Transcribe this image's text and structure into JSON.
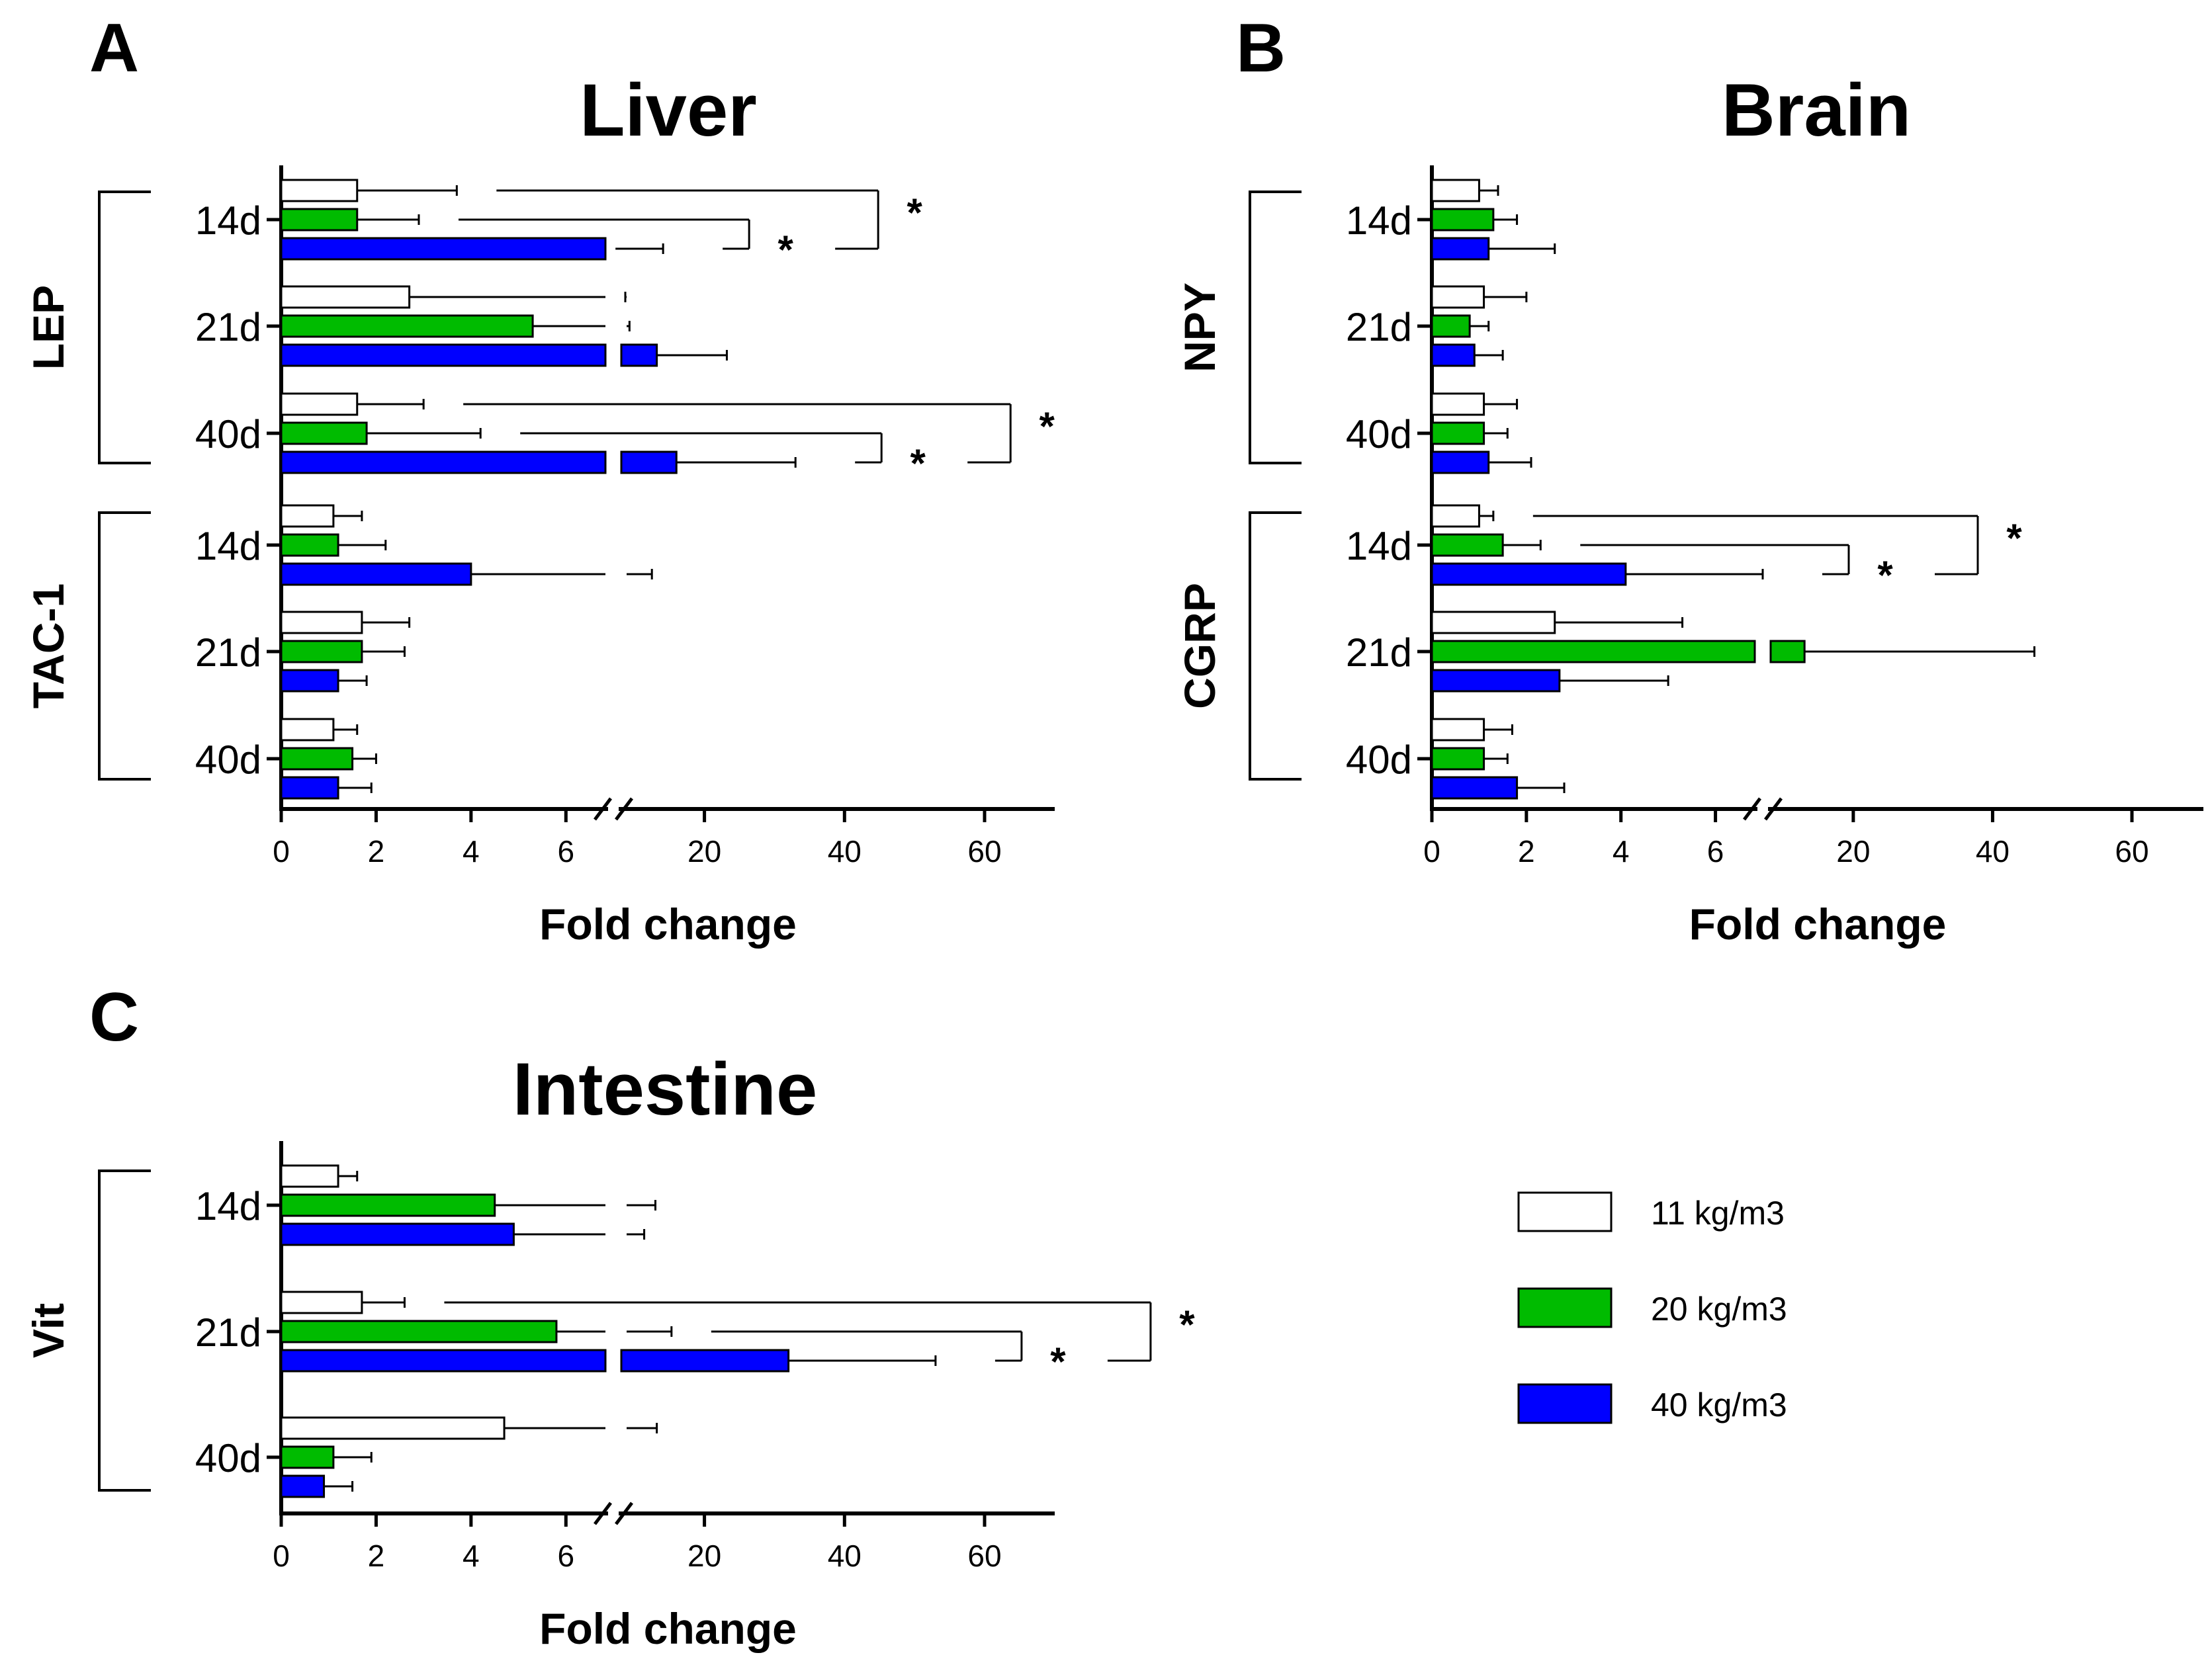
{
  "chart_data": [
    {
      "panel": "A",
      "title": "Liver",
      "type": "bar",
      "orientation": "horizontal",
      "xlabel": "Fold change",
      "x_ticks": [
        "0",
        "2",
        "4",
        "6",
        "20",
        "40",
        "60"
      ],
      "x_axis_break": {
        "lower_range": [
          0,
          7
        ],
        "upper_range": [
          7,
          70
        ]
      },
      "groups": [
        {
          "gene": "LEP",
          "rows": [
            {
              "label": "14d",
              "values": [
                1.6,
                1.6,
                7.3
              ],
              "errors": [
                2.1,
                1.3,
                6.8
              ],
              "brackets": [
                {
                  "star": "*",
                  "pair": [
                    1,
                    2
                  ]
                },
                {
                  "star": "*",
                  "pair": [
                    0,
                    2
                  ]
                }
              ]
            },
            {
              "label": "21d",
              "values": [
                2.7,
                5.3,
                13.2
              ],
              "errors": [
                6.0,
                4.0,
                10.0
              ],
              "brackets": []
            },
            {
              "label": "40d",
              "values": [
                1.6,
                1.8,
                16.0
              ],
              "errors": [
                1.4,
                2.4,
                17.0
              ],
              "brackets": [
                {
                  "star": "*",
                  "pair": [
                    1,
                    2
                  ]
                },
                {
                  "star": "*",
                  "pair": [
                    0,
                    2
                  ]
                }
              ]
            }
          ]
        },
        {
          "gene": "TAC-1",
          "rows": [
            {
              "label": "14d",
              "values": [
                1.1,
                1.2,
                4.0
              ],
              "errors": [
                0.6,
                1.0,
                8.5
              ],
              "brackets": []
            },
            {
              "label": "21d",
              "values": [
                1.7,
                1.7,
                1.2
              ],
              "errors": [
                1.0,
                0.9,
                0.6
              ],
              "brackets": []
            },
            {
              "label": "40d",
              "values": [
                1.1,
                1.5,
                1.2
              ],
              "errors": [
                0.5,
                0.5,
                0.7
              ],
              "brackets": []
            }
          ]
        }
      ]
    },
    {
      "panel": "B",
      "title": "Brain",
      "type": "bar",
      "orientation": "horizontal",
      "xlabel": "Fold change",
      "x_ticks": [
        "0",
        "2",
        "4",
        "6",
        "20",
        "40",
        "60"
      ],
      "x_axis_break": {
        "lower_range": [
          0,
          7
        ],
        "upper_range": [
          7,
          70
        ]
      },
      "groups": [
        {
          "gene": "NPY",
          "rows": [
            {
              "label": "14d",
              "values": [
                1.0,
                1.3,
                1.2
              ],
              "errors": [
                0.4,
                0.5,
                1.4
              ],
              "brackets": []
            },
            {
              "label": "21d",
              "values": [
                1.1,
                0.8,
                0.9
              ],
              "errors": [
                0.9,
                0.4,
                0.6
              ],
              "brackets": []
            },
            {
              "label": "40d",
              "values": [
                1.1,
                1.1,
                1.2
              ],
              "errors": [
                0.7,
                0.5,
                0.9
              ],
              "brackets": []
            }
          ]
        },
        {
          "gene": "CGRP",
          "rows": [
            {
              "label": "14d",
              "values": [
                1.0,
                1.5,
                4.1
              ],
              "errors": [
                0.3,
                0.8,
                2.9
              ],
              "brackets": [
                {
                  "star": "*",
                  "pair": [
                    1,
                    2
                  ]
                },
                {
                  "star": "*",
                  "pair": [
                    0,
                    2
                  ]
                }
              ]
            },
            {
              "label": "21d",
              "values": [
                2.6,
                13.0,
                2.7
              ],
              "errors": [
                2.7,
                33.0,
                2.3
              ],
              "brackets": []
            },
            {
              "label": "40d",
              "values": [
                1.1,
                1.1,
                1.8
              ],
              "errors": [
                0.6,
                0.5,
                1.0
              ],
              "brackets": []
            }
          ]
        }
      ]
    },
    {
      "panel": "C",
      "title": "Intestine",
      "type": "bar",
      "orientation": "horizontal",
      "xlabel": "Fold change",
      "x_ticks": [
        "0",
        "2",
        "4",
        "6",
        "20",
        "40",
        "60"
      ],
      "x_axis_break": {
        "lower_range": [
          0,
          7
        ],
        "upper_range": [
          7,
          70
        ]
      },
      "groups": [
        {
          "gene": "Vit",
          "rows": [
            {
              "label": "14d",
              "values": [
                1.2,
                4.5,
                4.9
              ],
              "errors": [
                0.4,
                8.5,
                6.5
              ],
              "brackets": []
            },
            {
              "label": "21d",
              "values": [
                1.7,
                5.8,
                32.0
              ],
              "errors": [
                0.9,
                9.5,
                21.0
              ],
              "brackets": [
                {
                  "star": "*",
                  "pair": [
                    1,
                    2
                  ]
                },
                {
                  "star": "*",
                  "pair": [
                    0,
                    2
                  ]
                }
              ]
            },
            {
              "label": "40d",
              "values": [
                4.7,
                1.1,
                0.9
              ],
              "errors": [
                8.5,
                0.8,
                0.6
              ],
              "brackets": []
            }
          ]
        }
      ]
    }
  ],
  "legend": [
    {
      "label": "11 kg/m3",
      "color": "#ffffff"
    },
    {
      "label": "20 kg/m3",
      "color": "#00bb00"
    },
    {
      "label": "40 kg/m3",
      "color": "#0000ff"
    }
  ]
}
